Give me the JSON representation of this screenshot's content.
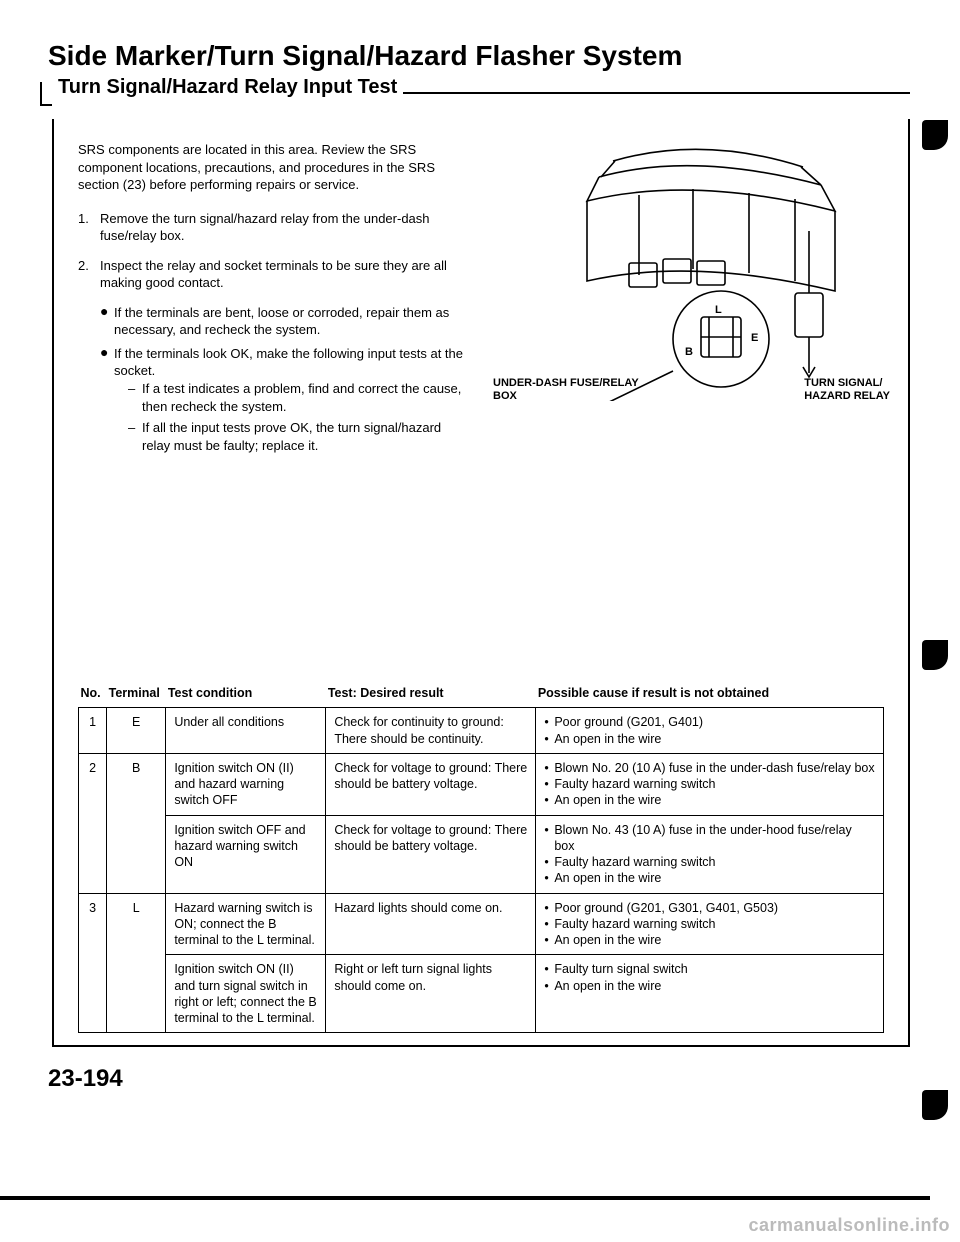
{
  "title": "Side Marker/Turn Signal/Hazard Flasher System",
  "subtitle": "Turn Signal/Hazard Relay Input Test",
  "intro": "SRS components are located in this area. Review the SRS component locations, precautions, and procedures in the SRS section (23) before performing repairs or service.",
  "steps": [
    {
      "num": "1.",
      "text": "Remove the turn signal/hazard relay from the under-dash fuse/relay box."
    },
    {
      "num": "2.",
      "text": "Inspect the relay and socket terminals to be sure they are all making good contact."
    }
  ],
  "bullets": [
    "If the terminals are bent, loose or corroded, repair them as necessary, and recheck the system.",
    "If the terminals look OK, make the following input tests at the socket."
  ],
  "dashes": [
    "If a test indicates a problem, find and correct the cause, then recheck the system.",
    "If all the input tests prove OK, the turn signal/hazard relay must be faulty; replace it."
  ],
  "diagram": {
    "label_box_l1": "UNDER-DASH FUSE/RELAY",
    "label_box_l2": "BOX",
    "label_relay_l1": "TURN SIGNAL/",
    "label_relay_l2": "HAZARD RELAY",
    "pin_L": "L",
    "pin_B": "B",
    "pin_E": "E"
  },
  "table": {
    "headers": {
      "no": "No.",
      "terminal": "Terminal",
      "condition": "Test condition",
      "result": "Test: Desired result",
      "cause": "Possible cause if result is not obtained"
    },
    "rows": [
      {
        "no": "1",
        "terminal": "E",
        "cells": [
          {
            "condition": "Under all conditions",
            "result": "Check for continuity to ground: There should be continuity.",
            "causes": [
              "Poor ground (G201, G401)",
              "An open in the wire"
            ]
          }
        ]
      },
      {
        "no": "2",
        "terminal": "B",
        "cells": [
          {
            "condition": "Ignition switch ON (II) and hazard warning switch OFF",
            "result": "Check for voltage to ground: There should be battery voltage.",
            "causes": [
              "Blown No. 20 (10 A) fuse in the under-dash fuse/relay box",
              "Faulty hazard warning switch",
              "An open in the wire"
            ]
          },
          {
            "condition": "Ignition switch OFF and hazard warning switch ON",
            "result": "Check for voltage to ground: There should be battery voltage.",
            "causes": [
              "Blown No. 43 (10 A) fuse in the under-hood fuse/relay box",
              "Faulty hazard warning switch",
              "An open in the wire"
            ]
          }
        ]
      },
      {
        "no": "3",
        "terminal": "L",
        "cells": [
          {
            "condition": "Hazard warning switch is ON; connect the B terminal to the L terminal.",
            "result": "Hazard lights should come on.",
            "causes": [
              "Poor ground (G201, G301, G401, G503)",
              "Faulty hazard warning switch",
              "An open in the wire"
            ]
          },
          {
            "condition": "Ignition switch ON (II) and turn signal switch in right or left; connect the B terminal to the L terminal.",
            "result": "Right or left turn signal lights should come on.",
            "causes": [
              "Faulty turn signal switch",
              "An open in the wire"
            ]
          }
        ]
      }
    ]
  },
  "page_num": "23-194",
  "watermark": "carmanualsonline.info",
  "colors": {
    "text": "#000000",
    "bg": "#ffffff",
    "watermark": "#bbbbbb"
  }
}
